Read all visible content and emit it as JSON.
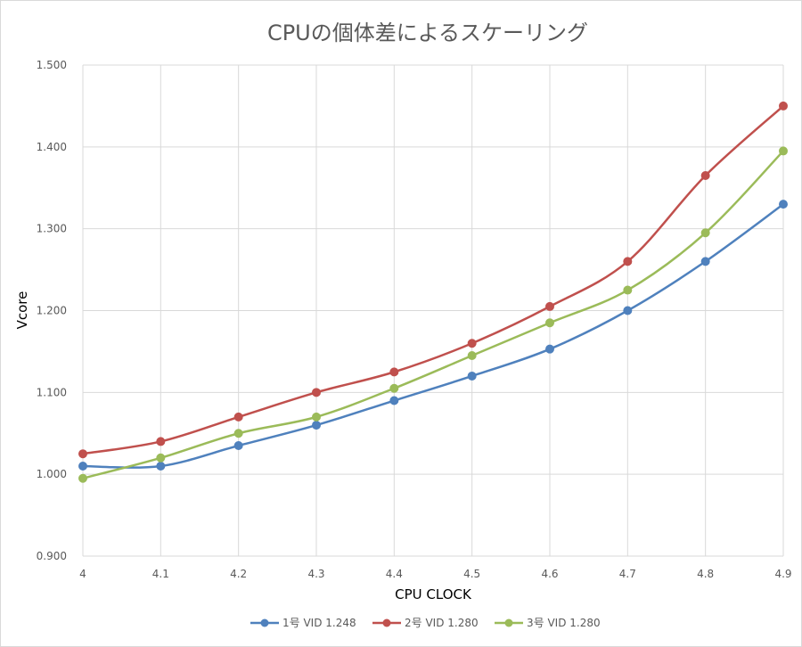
{
  "chart_data": {
    "type": "line",
    "title": "CPUの個体差によるスケーリング",
    "xlabel": "CPU CLOCK",
    "ylabel": "Vcore",
    "x": [
      "4",
      "4.1",
      "4.2",
      "4.3",
      "4.4",
      "4.5",
      "4.6",
      "4.7",
      "4.8",
      "4.9"
    ],
    "xlim": [
      4.0,
      4.9
    ],
    "ylim": [
      0.9,
      1.5
    ],
    "yticks": [
      "0.900",
      "1.000",
      "1.100",
      "1.200",
      "1.300",
      "1.400",
      "1.500"
    ],
    "ytick_values": [
      0.9,
      1.0,
      1.1,
      1.2,
      1.3,
      1.4,
      1.5
    ],
    "grid": true,
    "legend_position": "bottom",
    "smooth": true,
    "series": [
      {
        "name": "1号 VID 1.248",
        "color": "#4f81bd",
        "values": [
          1.01,
          1.01,
          1.035,
          1.06,
          1.09,
          1.12,
          1.153,
          1.2,
          1.26,
          1.33
        ]
      },
      {
        "name": "2号 VID 1.280",
        "color": "#c0504d",
        "values": [
          1.025,
          1.04,
          1.07,
          1.1,
          1.125,
          1.16,
          1.205,
          1.26,
          1.365,
          1.45
        ]
      },
      {
        "name": "3号 VID 1.280",
        "color": "#9bbb59",
        "values": [
          0.995,
          1.02,
          1.05,
          1.07,
          1.105,
          1.145,
          1.185,
          1.225,
          1.295,
          1.395
        ]
      }
    ]
  }
}
